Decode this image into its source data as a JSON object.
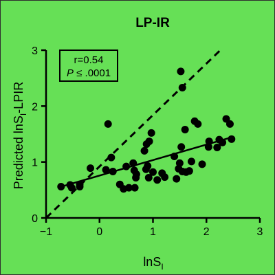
{
  "chart_data": {
    "type": "scatter",
    "title": "LP-IR",
    "xlabel": {
      "main": "lnS",
      "sub": "I"
    },
    "ylabel": {
      "main": "Predicted lnS",
      "sub": "I",
      "tail": "-LPIR"
    },
    "xlim": [
      -1,
      3
    ],
    "ylim": [
      0,
      3
    ],
    "xticks": [
      -1,
      0,
      1,
      2,
      3
    ],
    "yticks": [
      0,
      1,
      2,
      3
    ],
    "grid": false,
    "colors": {
      "background": "#66e056",
      "points": "#000000",
      "lines": "#000000"
    },
    "stats_box": {
      "r_text": "r=0.54",
      "p_symbol": "P",
      "p_rest": " ≤ .0001"
    },
    "identity_line": {
      "style": "dashed",
      "x": [
        -1,
        2.26
      ],
      "y": [
        0,
        3
      ]
    },
    "regression_line": {
      "style": "solid",
      "x": [
        -0.75,
        2.5
      ],
      "y": [
        0.55,
        1.45
      ]
    },
    "points": [
      {
        "x": -0.72,
        "y": 0.56
      },
      {
        "x": -0.55,
        "y": 0.59
      },
      {
        "x": -0.52,
        "y": 0.54
      },
      {
        "x": -0.37,
        "y": 0.6
      },
      {
        "x": -0.37,
        "y": 0.56
      },
      {
        "x": -0.17,
        "y": 0.89
      },
      {
        "x": 0.12,
        "y": 0.86
      },
      {
        "x": 0.16,
        "y": 1.68
      },
      {
        "x": 0.22,
        "y": 1.08
      },
      {
        "x": 0.25,
        "y": 0.83
      },
      {
        "x": 0.38,
        "y": 0.6
      },
      {
        "x": 0.45,
        "y": 0.52
      },
      {
        "x": 0.55,
        "y": 0.54
      },
      {
        "x": 0.66,
        "y": 0.54
      },
      {
        "x": 0.5,
        "y": 0.92
      },
      {
        "x": 0.63,
        "y": 0.98
      },
      {
        "x": 0.65,
        "y": 0.85
      },
      {
        "x": 0.69,
        "y": 0.78
      },
      {
        "x": 0.68,
        "y": 0.72
      },
      {
        "x": 0.84,
        "y": 1.2
      },
      {
        "x": 0.87,
        "y": 0.87
      },
      {
        "x": 0.9,
        "y": 0.93
      },
      {
        "x": 0.88,
        "y": 1.32
      },
      {
        "x": 0.93,
        "y": 1.37
      },
      {
        "x": 0.97,
        "y": 1.52
      },
      {
        "x": 0.92,
        "y": 0.72
      },
      {
        "x": 1.0,
        "y": 0.82
      },
      {
        "x": 1.08,
        "y": 0.68
      },
      {
        "x": 1.17,
        "y": 0.8
      },
      {
        "x": 1.22,
        "y": 0.73
      },
      {
        "x": 1.4,
        "y": 1.1
      },
      {
        "x": 1.44,
        "y": 0.7
      },
      {
        "x": 1.48,
        "y": 0.88
      },
      {
        "x": 1.5,
        "y": 0.98
      },
      {
        "x": 1.53,
        "y": 1.27
      },
      {
        "x": 1.55,
        "y": 0.83
      },
      {
        "x": 1.62,
        "y": 0.82
      },
      {
        "x": 1.68,
        "y": 0.84
      },
      {
        "x": 1.6,
        "y": 1.58
      },
      {
        "x": 1.72,
        "y": 1.01
      },
      {
        "x": 1.78,
        "y": 1.73
      },
      {
        "x": 1.84,
        "y": 1.68
      },
      {
        "x": 1.92,
        "y": 0.96
      },
      {
        "x": 2.04,
        "y": 1.27
      },
      {
        "x": 2.05,
        "y": 1.37
      },
      {
        "x": 2.2,
        "y": 1.26
      },
      {
        "x": 2.24,
        "y": 1.4
      },
      {
        "x": 2.3,
        "y": 1.35
      },
      {
        "x": 2.37,
        "y": 1.77
      },
      {
        "x": 2.44,
        "y": 1.68
      },
      {
        "x": 2.47,
        "y": 1.41
      },
      {
        "x": 1.55,
        "y": 2.33
      },
      {
        "x": 1.52,
        "y": 2.62
      }
    ]
  }
}
